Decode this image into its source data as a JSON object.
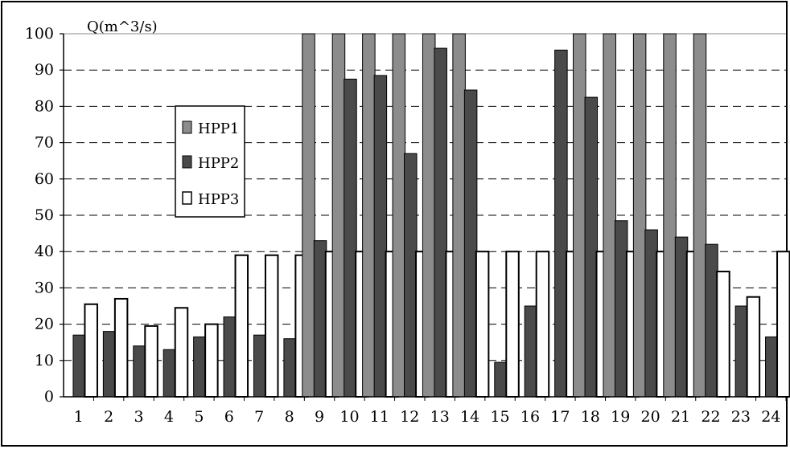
{
  "chart_data": {
    "type": "bar",
    "title": "",
    "xlabel": "",
    "ylabel": "Q(m^3/s)",
    "ylim": [
      0,
      100
    ],
    "yticks": [
      0,
      10,
      20,
      30,
      40,
      50,
      60,
      70,
      80,
      90,
      100
    ],
    "grid": "dashed horizontal",
    "legend_placement": "left-center",
    "categories": [
      "1",
      "2",
      "3",
      "4",
      "5",
      "6",
      "7",
      "8",
      "9",
      "10",
      "11",
      "12",
      "13",
      "14",
      "15",
      "16",
      "17",
      "18",
      "19",
      "20",
      "21",
      "22",
      "23",
      "24"
    ],
    "series": [
      {
        "name": "HPP1",
        "color": "#8c8c8c",
        "values": [
          0,
          0,
          0,
          0,
          0,
          0,
          0,
          0,
          100,
          100,
          100,
          100,
          100,
          100,
          0,
          0,
          0,
          100,
          100,
          100,
          100,
          100,
          0,
          0
        ]
      },
      {
        "name": "HPP2",
        "color": "#4a4a4a",
        "values": [
          17,
          18,
          14,
          13,
          16.5,
          22,
          17,
          16,
          43,
          87.5,
          88.5,
          67,
          96,
          84.5,
          9.5,
          25,
          95.5,
          82.5,
          48.5,
          46,
          44,
          42,
          25,
          16.5
        ]
      },
      {
        "name": "HPP3",
        "color": "#ffffff",
        "values": [
          25.5,
          27,
          19.5,
          24.5,
          20,
          39,
          39,
          39,
          40,
          40,
          40,
          40,
          40,
          40,
          40,
          40,
          40,
          40,
          40,
          40,
          40,
          34.5,
          27.5,
          40
        ]
      }
    ]
  }
}
